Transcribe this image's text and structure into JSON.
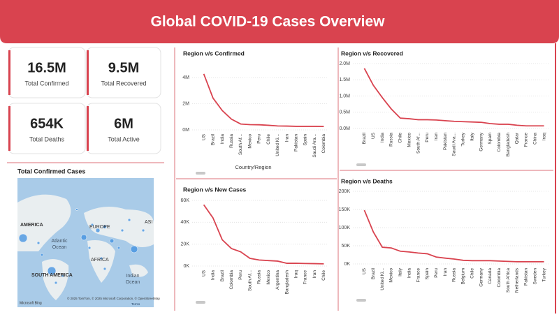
{
  "header": {
    "title": "Global COVID-19 Cases Overview"
  },
  "kpis": [
    {
      "value": "16.5M",
      "label": "Total Confirmed"
    },
    {
      "value": "9.5M",
      "label": "Total Recovered"
    },
    {
      "value": "654K",
      "label": "Total Deaths"
    },
    {
      "value": "6M",
      "label": "Total Active"
    }
  ],
  "map": {
    "title": "Total Confirmed Cases",
    "labels": [
      "AMERICA",
      "EUROPE",
      "ASI",
      "Atlantic",
      "Ocean",
      "AFRICA",
      "SOUTH AMERICA",
      "Indian",
      "Ocean"
    ],
    "credit": "© 2025 TomTom, © 2025 Microsoft Corporation, © OpenStreetMap",
    "terms": "Terms",
    "logo": "Microsoft Bing"
  },
  "chart_data": [
    {
      "type": "line",
      "title": "Region v/s Confirmed",
      "x_label": "Country/Region",
      "color": "#d9434f",
      "grid": true,
      "categories": [
        "US",
        "Brazil",
        "India",
        "Russia",
        "South Af...",
        "Mexico",
        "Peru",
        "Chile",
        "United Ki...",
        "Iran",
        "Pakistan",
        "Spain",
        "Saudi Ara...",
        "Colombia"
      ],
      "values": [
        4290000,
        2440000,
        1480000,
        820000,
        450000,
        400000,
        390000,
        350000,
        300000,
        290000,
        270000,
        270000,
        270000,
        260000
      ],
      "ylim": [
        0,
        4600000
      ],
      "yticks": [
        {
          "value": 0,
          "label": "0M"
        },
        {
          "value": 2000000,
          "label": "2M"
        },
        {
          "value": 4000000,
          "label": "4M"
        }
      ]
    },
    {
      "type": "line",
      "title": "Region v/s Recovered",
      "color": "#d9434f",
      "grid": true,
      "categories": [
        "Brazil",
        "US",
        "India",
        "Russia",
        "Chile",
        "Mexico",
        "South Af...",
        "Peru",
        "Iran",
        "Pakistan",
        "Saudi Ara...",
        "Turkey",
        "Italy",
        "Germany",
        "Spain",
        "Colombia",
        "Bangladesh",
        "Qatar",
        "France",
        "China",
        "Iraq"
      ],
      "values": [
        1850000,
        1330000,
        950000,
        600000,
        320000,
        300000,
        270000,
        270000,
        260000,
        240000,
        220000,
        210000,
        200000,
        190000,
        150000,
        130000,
        130000,
        100000,
        80000,
        80000,
        80000
      ],
      "ylim": [
        0,
        2000000
      ],
      "yticks": [
        {
          "value": 0,
          "label": "0.0M"
        },
        {
          "value": 500000,
          "label": "0.5M"
        },
        {
          "value": 1000000,
          "label": "1.0M"
        },
        {
          "value": 1500000,
          "label": "1.5M"
        },
        {
          "value": 2000000,
          "label": "2.0M"
        }
      ]
    },
    {
      "type": "line",
      "title": "Region v/s New Cases",
      "color": "#d9434f",
      "grid": true,
      "categories": [
        "US",
        "India",
        "Brazil",
        "Colombia",
        "Peru",
        "South Af...",
        "Russia",
        "Mexico",
        "Argentina",
        "Bangladesh",
        "Iraq",
        "France",
        "Iran",
        "Chile"
      ],
      "values": [
        56000,
        44000,
        24000,
        16000,
        13000,
        7000,
        5500,
        5000,
        4500,
        2500,
        2500,
        2300,
        2200,
        2000
      ],
      "ylim": [
        0,
        60000
      ],
      "yticks": [
        {
          "value": 0,
          "label": "0K"
        },
        {
          "value": 20000,
          "label": "20K"
        },
        {
          "value": 40000,
          "label": "40K"
        },
        {
          "value": 60000,
          "label": "60K"
        }
      ]
    },
    {
      "type": "line",
      "title": "Region v/s Deaths",
      "color": "#d9434f",
      "grid": true,
      "categories": [
        "US",
        "Brazil",
        "United Ki...",
        "Mexico",
        "Italy",
        "India",
        "France",
        "Spain",
        "Peru",
        "Iran",
        "Russia",
        "Belgium",
        "Chile",
        "Germany",
        "Canada",
        "Colombia",
        "South Africa",
        "Netherlands",
        "Pakistan",
        "Sweden",
        "Turkey"
      ],
      "values": [
        148000,
        88000,
        46000,
        44000,
        35000,
        33000,
        30000,
        28000,
        19000,
        16000,
        13500,
        10000,
        9000,
        9000,
        9000,
        8000,
        7000,
        6000,
        6000,
        6000,
        6000
      ],
      "ylim": [
        0,
        200000
      ],
      "yticks": [
        {
          "value": 0,
          "label": "0K"
        },
        {
          "value": 50000,
          "label": "50K"
        },
        {
          "value": 100000,
          "label": "100K"
        },
        {
          "value": 150000,
          "label": "150K"
        },
        {
          "value": 200000,
          "label": "200K"
        }
      ]
    }
  ]
}
